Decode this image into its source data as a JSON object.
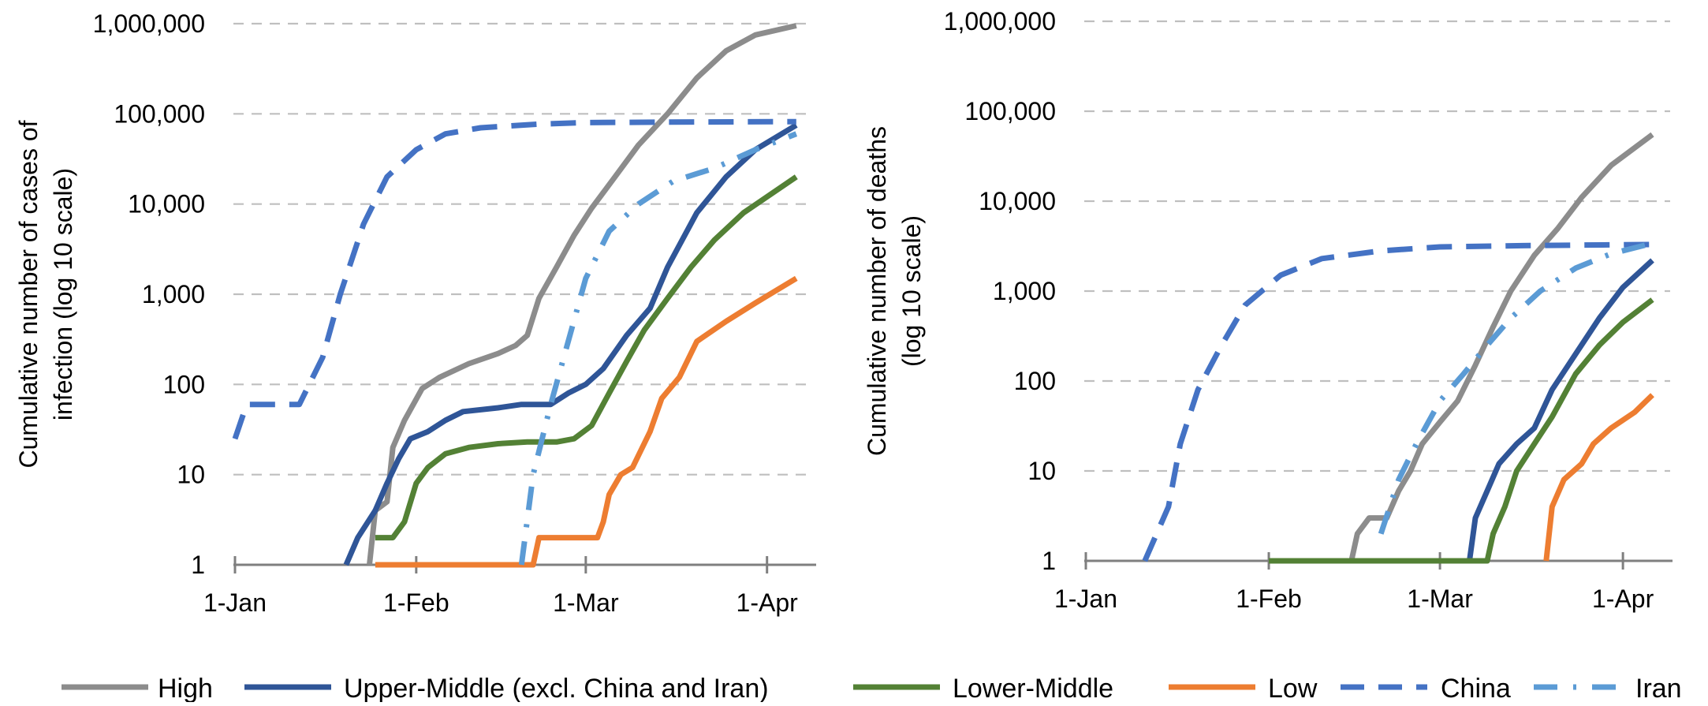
{
  "legend": [
    "High",
    "Upper-Middle (excl. China and Iran)",
    "Lower-Middle",
    "Low",
    "China",
    "Iran"
  ],
  "colors": {
    "High": "#8c8c8c",
    "Upper-Middle (excl. China and Iran)": "#2f5597",
    "Lower-Middle": "#538135",
    "Low": "#ed7d31",
    "China": "#4472c4",
    "Iran": "#5b9bd5",
    "grid": "#bfbfbf",
    "axis": "#7f7f7f"
  },
  "chart_data": [
    {
      "type": "line",
      "title": "",
      "ylabel": "Cumulative number of cases of infection (log 10 scale)",
      "xlabel": "",
      "yscale": "log10",
      "ylim": [
        1,
        1000000
      ],
      "xlim": [
        "2020-01-01",
        "2020-04-09"
      ],
      "x_ticks": [
        "1-Jan",
        "1-Feb",
        "1-Mar",
        "1-Apr"
      ],
      "y_ticks": [
        "1",
        "10",
        "100",
        "1,000",
        "10,000",
        "100,000",
        "1,000,000"
      ],
      "grid": true,
      "legend_position": "bottom",
      "series": [
        {
          "name": "High",
          "style": "solid",
          "points": [
            [
              "2020-01-24",
              1
            ],
            [
              "2020-01-25",
              4
            ],
            [
              "2020-01-27",
              5
            ],
            [
              "2020-01-28",
              20
            ],
            [
              "2020-01-30",
              40
            ],
            [
              "2020-02-02",
              90
            ],
            [
              "2020-02-05",
              120
            ],
            [
              "2020-02-10",
              170
            ],
            [
              "2020-02-15",
              220
            ],
            [
              "2020-02-18",
              270
            ],
            [
              "2020-02-20",
              350
            ],
            [
              "2020-02-22",
              900
            ],
            [
              "2020-02-25",
              2000
            ],
            [
              "2020-02-28",
              4500
            ],
            [
              "2020-03-02",
              9000
            ],
            [
              "2020-03-06",
              20000
            ],
            [
              "2020-03-10",
              45000
            ],
            [
              "2020-03-15",
              100000
            ],
            [
              "2020-03-20",
              250000
            ],
            [
              "2020-03-25",
              500000
            ],
            [
              "2020-03-30",
              750000
            ],
            [
              "2020-04-06",
              950000
            ]
          ]
        },
        {
          "name": "Upper-Middle (excl. China and Iran)",
          "style": "solid",
          "points": [
            [
              "2020-01-20",
              1
            ],
            [
              "2020-01-22",
              2
            ],
            [
              "2020-01-25",
              4
            ],
            [
              "2020-01-27",
              8
            ],
            [
              "2020-01-29",
              15
            ],
            [
              "2020-01-31",
              25
            ],
            [
              "2020-02-03",
              30
            ],
            [
              "2020-02-06",
              40
            ],
            [
              "2020-02-09",
              50
            ],
            [
              "2020-02-15",
              55
            ],
            [
              "2020-02-19",
              60
            ],
            [
              "2020-02-24",
              60
            ],
            [
              "2020-02-27",
              80
            ],
            [
              "2020-03-01",
              100
            ],
            [
              "2020-03-04",
              150
            ],
            [
              "2020-03-08",
              350
            ],
            [
              "2020-03-12",
              700
            ],
            [
              "2020-03-15",
              2000
            ],
            [
              "2020-03-20",
              8000
            ],
            [
              "2020-03-25",
              20000
            ],
            [
              "2020-03-30",
              40000
            ],
            [
              "2020-04-06",
              75000
            ]
          ]
        },
        {
          "name": "Lower-Middle",
          "style": "solid",
          "points": [
            [
              "2020-01-25",
              2
            ],
            [
              "2020-01-28",
              2
            ],
            [
              "2020-01-30",
              3
            ],
            [
              "2020-02-01",
              8
            ],
            [
              "2020-02-03",
              12
            ],
            [
              "2020-02-06",
              17
            ],
            [
              "2020-02-10",
              20
            ],
            [
              "2020-02-15",
              22
            ],
            [
              "2020-02-20",
              23
            ],
            [
              "2020-02-25",
              23
            ],
            [
              "2020-02-28",
              25
            ],
            [
              "2020-03-02",
              35
            ],
            [
              "2020-03-05",
              80
            ],
            [
              "2020-03-08",
              180
            ],
            [
              "2020-03-11",
              400
            ],
            [
              "2020-03-15",
              900
            ],
            [
              "2020-03-19",
              2000
            ],
            [
              "2020-03-23",
              4000
            ],
            [
              "2020-03-28",
              8000
            ],
            [
              "2020-04-06",
              20000
            ]
          ]
        },
        {
          "name": "Low",
          "style": "solid",
          "points": [
            [
              "2020-01-25",
              1
            ],
            [
              "2020-02-21",
              1
            ],
            [
              "2020-02-22",
              2
            ],
            [
              "2020-03-03",
              2
            ],
            [
              "2020-03-04",
              3
            ],
            [
              "2020-03-05",
              6
            ],
            [
              "2020-03-07",
              10
            ],
            [
              "2020-03-09",
              12
            ],
            [
              "2020-03-12",
              30
            ],
            [
              "2020-03-14",
              70
            ],
            [
              "2020-03-17",
              120
            ],
            [
              "2020-03-20",
              300
            ],
            [
              "2020-03-25",
              500
            ],
            [
              "2020-03-30",
              800
            ],
            [
              "2020-04-06",
              1500
            ]
          ]
        },
        {
          "name": "China",
          "style": "dash",
          "points": [
            [
              "2020-01-01",
              25
            ],
            [
              "2020-01-03",
              60
            ],
            [
              "2020-01-12",
              60
            ],
            [
              "2020-01-16",
              200
            ],
            [
              "2020-01-19",
              1000
            ],
            [
              "2020-01-23",
              6000
            ],
            [
              "2020-01-27",
              20000
            ],
            [
              "2020-02-01",
              40000
            ],
            [
              "2020-02-06",
              60000
            ],
            [
              "2020-02-12",
              70000
            ],
            [
              "2020-02-22",
              77000
            ],
            [
              "2020-03-01",
              80000
            ],
            [
              "2020-03-15",
              81000
            ],
            [
              "2020-04-06",
              82000
            ]
          ]
        },
        {
          "name": "Iran",
          "style": "dashdot",
          "points": [
            [
              "2020-02-19",
              1
            ],
            [
              "2020-02-21",
              10
            ],
            [
              "2020-02-24",
              60
            ],
            [
              "2020-02-27",
              300
            ],
            [
              "2020-03-01",
              1500
            ],
            [
              "2020-03-05",
              5000
            ],
            [
              "2020-03-10",
              10000
            ],
            [
              "2020-03-16",
              18000
            ],
            [
              "2020-03-23",
              25000
            ],
            [
              "2020-03-30",
              40000
            ],
            [
              "2020-04-06",
              60000
            ]
          ]
        }
      ]
    },
    {
      "type": "line",
      "title": "",
      "ylabel": "Cumulative number of deaths (log 10 scale)",
      "xlabel": "",
      "yscale": "log10",
      "ylim": [
        1,
        1000000
      ],
      "xlim": [
        "2020-01-01",
        "2020-04-09"
      ],
      "x_ticks": [
        "1-Jan",
        "1-Feb",
        "1-Mar",
        "1-Apr"
      ],
      "y_ticks": [
        "1",
        "10",
        "100",
        "1,000",
        "10,000",
        "100,000",
        "1,000,000"
      ],
      "grid": true,
      "legend_position": "bottom",
      "series": [
        {
          "name": "High",
          "style": "solid",
          "points": [
            [
              "2020-02-15",
              1
            ],
            [
              "2020-02-16",
              2
            ],
            [
              "2020-02-18",
              3
            ],
            [
              "2020-02-21",
              3
            ],
            [
              "2020-02-23",
              6
            ],
            [
              "2020-02-25",
              10
            ],
            [
              "2020-02-27",
              20
            ],
            [
              "2020-03-01",
              35
            ],
            [
              "2020-03-04",
              60
            ],
            [
              "2020-03-07",
              150
            ],
            [
              "2020-03-10",
              400
            ],
            [
              "2020-03-13",
              1000
            ],
            [
              "2020-03-17",
              2500
            ],
            [
              "2020-03-21",
              5000
            ],
            [
              "2020-03-25",
              11000
            ],
            [
              "2020-03-30",
              25000
            ],
            [
              "2020-04-06",
              55000
            ]
          ]
        },
        {
          "name": "Upper-Middle (excl. China and Iran)",
          "style": "solid",
          "points": [
            [
              "2020-03-06",
              1
            ],
            [
              "2020-03-07",
              3
            ],
            [
              "2020-03-09",
              6
            ],
            [
              "2020-03-11",
              12
            ],
            [
              "2020-03-14",
              20
            ],
            [
              "2020-03-17",
              30
            ],
            [
              "2020-03-20",
              80
            ],
            [
              "2020-03-24",
              200
            ],
            [
              "2020-03-28",
              500
            ],
            [
              "2020-04-01",
              1100
            ],
            [
              "2020-04-06",
              2200
            ]
          ]
        },
        {
          "name": "Lower-Middle",
          "style": "solid",
          "points": [
            [
              "2020-02-01",
              1
            ],
            [
              "2020-03-09",
              1
            ],
            [
              "2020-03-10",
              2
            ],
            [
              "2020-03-12",
              4
            ],
            [
              "2020-03-14",
              10
            ],
            [
              "2020-03-17",
              20
            ],
            [
              "2020-03-20",
              40
            ],
            [
              "2020-03-24",
              120
            ],
            [
              "2020-03-28",
              250
            ],
            [
              "2020-04-01",
              450
            ],
            [
              "2020-04-06",
              800
            ]
          ]
        },
        {
          "name": "Low",
          "style": "solid",
          "points": [
            [
              "2020-03-19",
              1
            ],
            [
              "2020-03-20",
              4
            ],
            [
              "2020-03-22",
              8
            ],
            [
              "2020-03-25",
              12
            ],
            [
              "2020-03-27",
              20
            ],
            [
              "2020-03-30",
              30
            ],
            [
              "2020-04-03",
              45
            ],
            [
              "2020-04-06",
              70
            ]
          ]
        },
        {
          "name": "China",
          "style": "dash",
          "points": [
            [
              "2020-01-11",
              1
            ],
            [
              "2020-01-13",
              2
            ],
            [
              "2020-01-15",
              4
            ],
            [
              "2020-01-17",
              20
            ],
            [
              "2020-01-20",
              80
            ],
            [
              "2020-01-24",
              250
            ],
            [
              "2020-01-28",
              700
            ],
            [
              "2020-02-03",
              1500
            ],
            [
              "2020-02-10",
              2300
            ],
            [
              "2020-02-20",
              2800
            ],
            [
              "2020-03-01",
              3100
            ],
            [
              "2020-03-15",
              3200
            ],
            [
              "2020-04-06",
              3300
            ]
          ]
        },
        {
          "name": "Iran",
          "style": "dashdot",
          "points": [
            [
              "2020-02-20",
              2
            ],
            [
              "2020-02-23",
              8
            ],
            [
              "2020-02-26",
              20
            ],
            [
              "2020-03-01",
              60
            ],
            [
              "2020-03-05",
              120
            ],
            [
              "2020-03-09",
              250
            ],
            [
              "2020-03-13",
              500
            ],
            [
              "2020-03-18",
              1000
            ],
            [
              "2020-03-24",
              1800
            ],
            [
              "2020-03-30",
              2600
            ],
            [
              "2020-04-06",
              3400
            ]
          ]
        }
      ]
    }
  ]
}
